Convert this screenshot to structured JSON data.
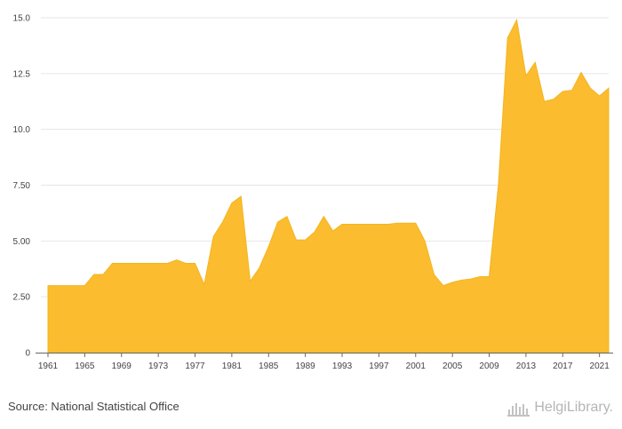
{
  "chart_data": {
    "type": "area",
    "title": "",
    "xlabel": "",
    "ylabel": "",
    "ylim": [
      0,
      15
    ],
    "xlim": [
      1961,
      2022
    ],
    "x_ticks": [
      "1961",
      "1965",
      "1969",
      "1973",
      "1977",
      "1981",
      "1985",
      "1989",
      "1993",
      "1997",
      "2001",
      "2005",
      "2009",
      "2013",
      "2017",
      "2021"
    ],
    "y_ticks": [
      "0",
      "2.50",
      "5.00",
      "7.50",
      "10.0",
      "12.5",
      "15.0"
    ],
    "grid": "horizontal",
    "color": "#FBBD2F",
    "x": [
      1961,
      1962,
      1963,
      1964,
      1965,
      1966,
      1967,
      1968,
      1969,
      1970,
      1971,
      1972,
      1973,
      1974,
      1975,
      1976,
      1977,
      1978,
      1979,
      1980,
      1981,
      1982,
      1983,
      1984,
      1985,
      1986,
      1987,
      1988,
      1989,
      1990,
      1991,
      1992,
      1993,
      1994,
      1995,
      1996,
      1997,
      1998,
      1999,
      2000,
      2001,
      2002,
      2003,
      2004,
      2005,
      2006,
      2007,
      2008,
      2009,
      2010,
      2011,
      2012,
      2013,
      2014,
      2015,
      2016,
      2017,
      2018,
      2019,
      2020,
      2021,
      2022
    ],
    "values": [
      3.0,
      3.0,
      3.0,
      3.0,
      3.0,
      3.5,
      3.5,
      4.0,
      4.0,
      4.0,
      4.0,
      4.0,
      4.0,
      4.0,
      4.15,
      4.0,
      4.0,
      3.05,
      5.2,
      5.85,
      6.7,
      7.0,
      3.2,
      3.8,
      4.75,
      5.85,
      6.1,
      5.05,
      5.05,
      5.4,
      6.1,
      5.45,
      5.75,
      5.75,
      5.75,
      5.75,
      5.75,
      5.75,
      5.8,
      5.8,
      5.8,
      5.0,
      3.5,
      3.0,
      3.15,
      3.25,
      3.3,
      3.4,
      3.4,
      7.5,
      14.1,
      14.9,
      12.4,
      13.0,
      11.25,
      11.35,
      11.7,
      11.75,
      12.55,
      11.85,
      11.5,
      11.85
    ]
  },
  "footer": {
    "source": "Source: National Statistical Office",
    "brand": "HelgiLibrary."
  },
  "brand_color": "#b5b5b5"
}
